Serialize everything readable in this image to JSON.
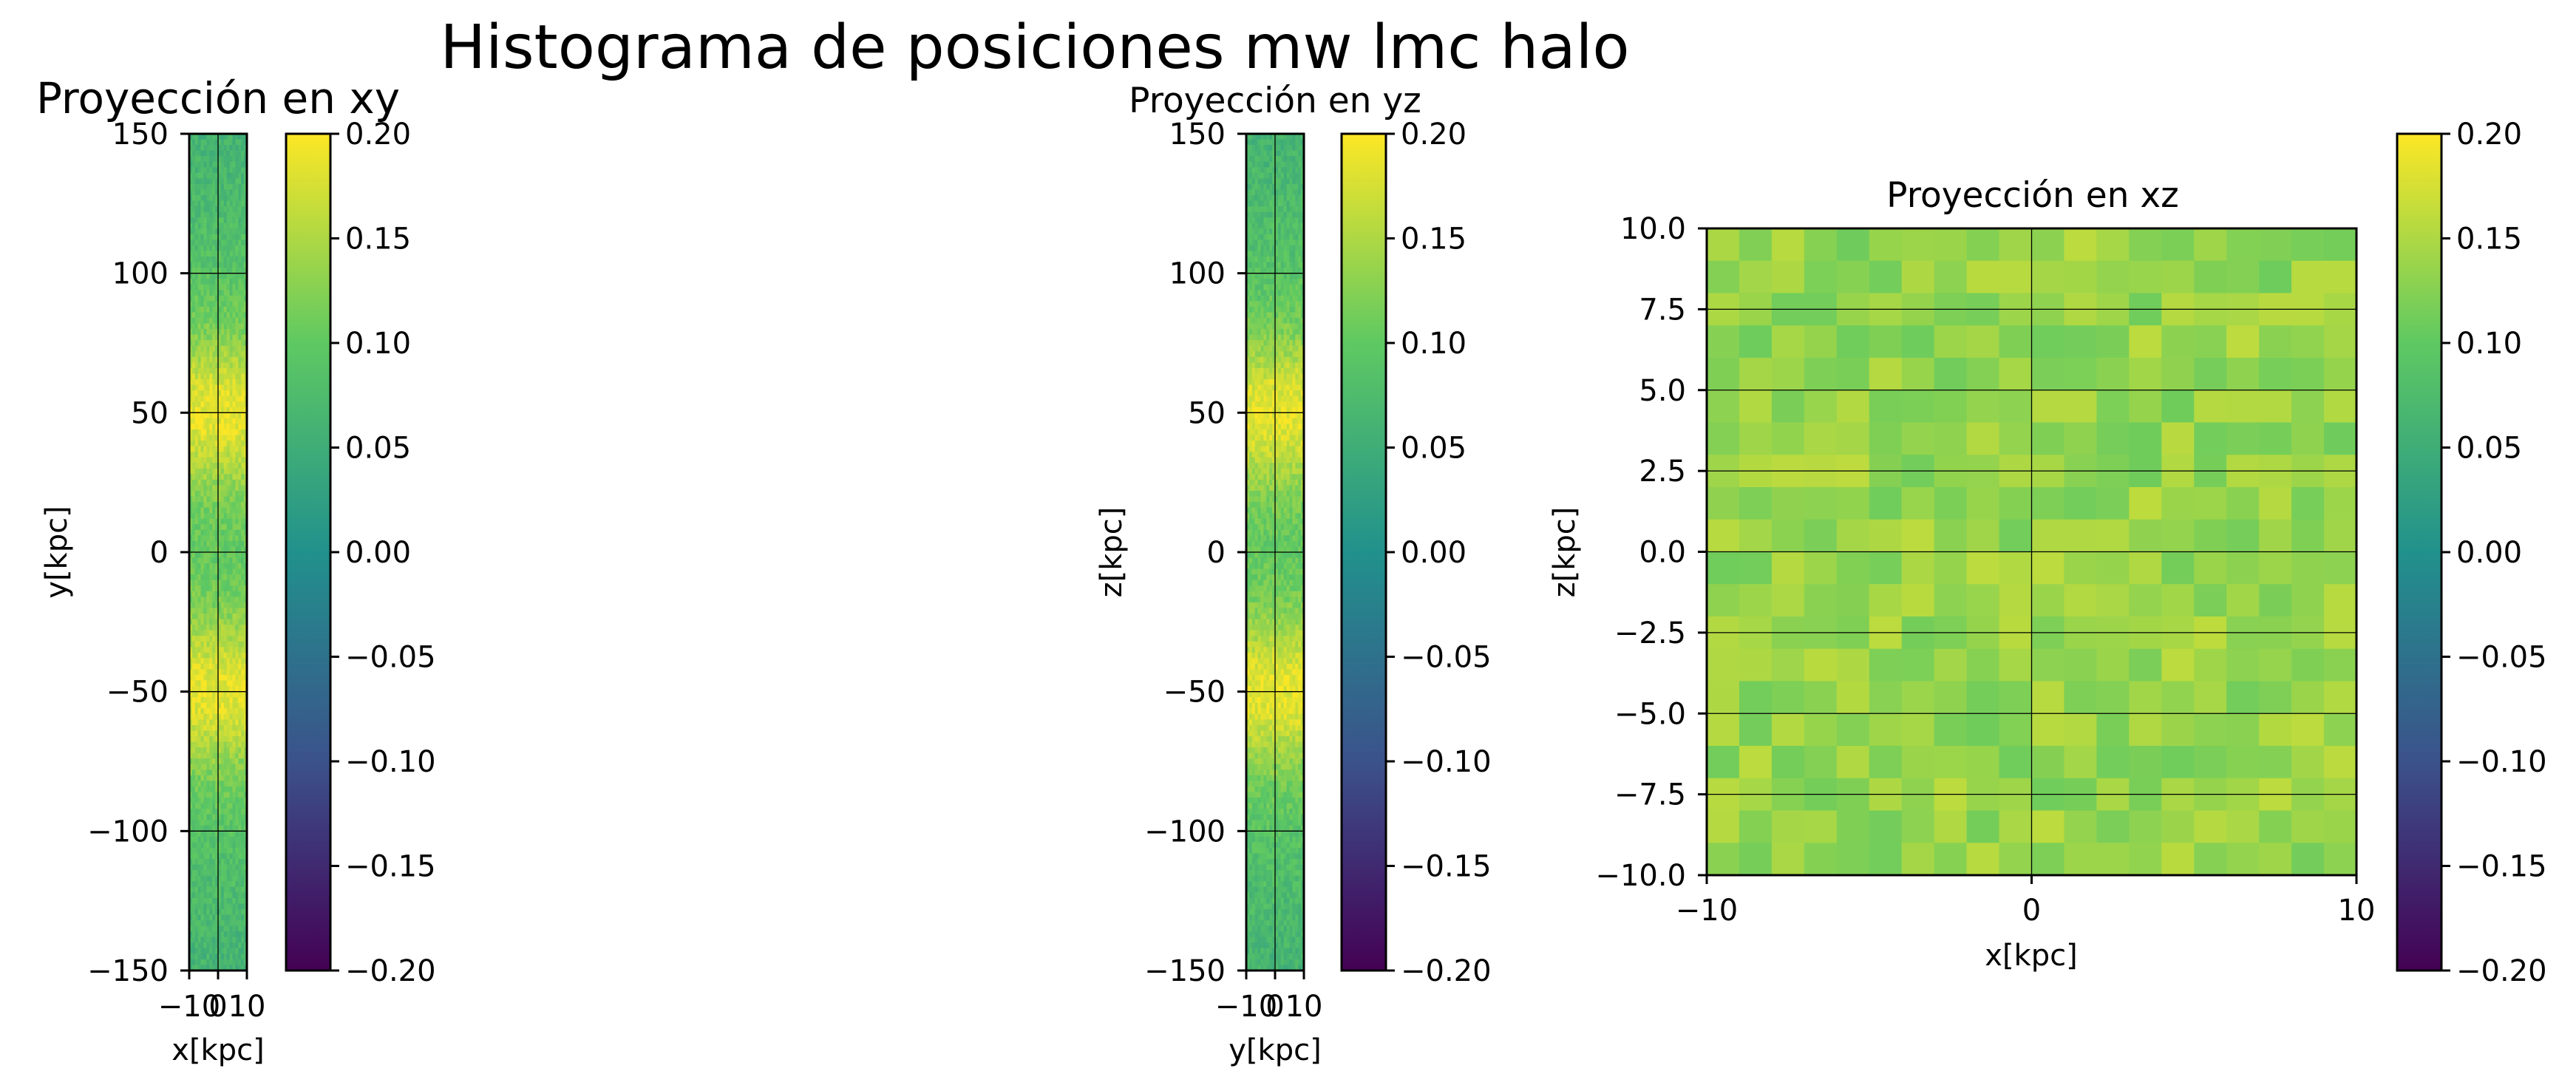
{
  "figure": {
    "suptitle": "Histograma de posiciones mw lmc halo"
  },
  "colormap": {
    "name": "viridis",
    "stops": [
      "#440154",
      "#3b528b",
      "#21918c",
      "#5ec962",
      "#fde725"
    ]
  },
  "chart_data": [
    {
      "type": "heatmap",
      "title": "Proyección en xy",
      "xlabel": "x[kpc]",
      "ylabel": "y[kpc]",
      "xlim": [
        -10,
        10
      ],
      "ylim": [
        -150,
        150
      ],
      "xticks": [
        "−10",
        "0",
        "10"
      ],
      "yticks": [
        "−150",
        "−100",
        "−50",
        "0",
        "50",
        "100",
        "150"
      ],
      "grid": true,
      "profile": "peaks near y=±50, noisy, lower toward y=±150",
      "colorbar": {
        "range": [
          -0.2,
          0.2
        ],
        "ticks": [
          "−0.20",
          "−0.15",
          "−0.10",
          "−0.05",
          "0.00",
          "0.05",
          "0.10",
          "0.15",
          "0.20"
        ]
      }
    },
    {
      "type": "heatmap",
      "title": "Proyección en yz",
      "xlabel": "y[kpc]",
      "ylabel": "z[kpc]",
      "xlim": [
        -10,
        10
      ],
      "ylim": [
        -150,
        150
      ],
      "xticks": [
        "−10",
        "0",
        "10"
      ],
      "yticks": [
        "−150",
        "−100",
        "−50",
        "0",
        "50",
        "100",
        "150"
      ],
      "grid": true,
      "profile": "peaks near z=±50, noisy, lower toward z=±150",
      "colorbar": {
        "range": [
          -0.2,
          0.2
        ],
        "ticks": [
          "−0.20",
          "−0.15",
          "−0.10",
          "−0.05",
          "0.00",
          "0.05",
          "0.10",
          "0.15",
          "0.20"
        ]
      }
    },
    {
      "type": "heatmap",
      "title": "Proyección en xz",
      "xlabel": "x[kpc]",
      "ylabel": "z[kpc]",
      "xlim": [
        -10,
        10
      ],
      "ylim": [
        -10,
        10
      ],
      "xticks": [
        "−10",
        "0",
        "10"
      ],
      "yticks": [
        "−10.0",
        "−7.5",
        "−5.0",
        "−2.5",
        "0.0",
        "2.5",
        "5.0",
        "7.5",
        "10.0"
      ],
      "grid": true,
      "value_range": [
        0.11,
        0.16
      ],
      "colorbar": {
        "range": [
          -0.2,
          0.2
        ],
        "ticks": [
          "−0.20",
          "−0.15",
          "−0.10",
          "−0.05",
          "0.00",
          "0.05",
          "0.10",
          "0.15",
          "0.20"
        ]
      }
    }
  ]
}
